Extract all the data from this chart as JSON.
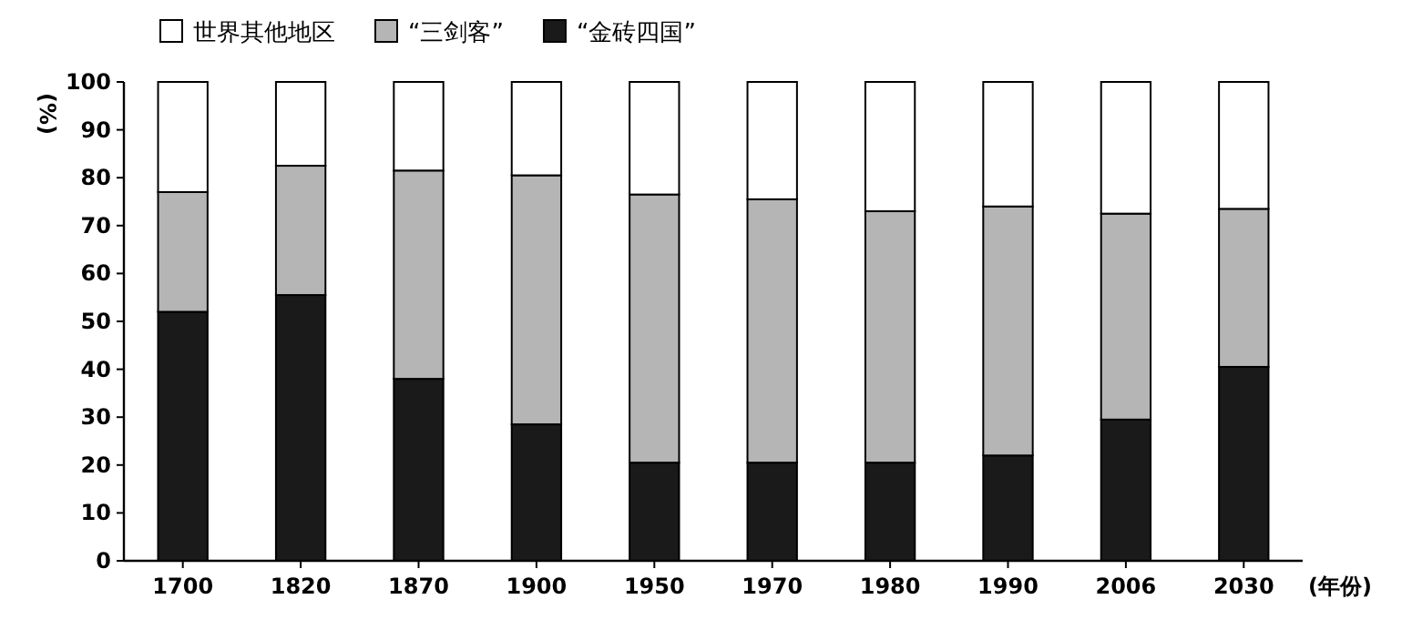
{
  "chart_data": {
    "type": "bar",
    "stacked": true,
    "ylabel": "(%)",
    "xlabel": "(年份)",
    "categories": [
      "1700",
      "1820",
      "1870",
      "1900",
      "1950",
      "1970",
      "1980",
      "1990",
      "2006",
      "2030"
    ],
    "series": [
      {
        "name": "“金砖四国”",
        "color": "#1a1a1a",
        "values": [
          52,
          55.5,
          38,
          28.5,
          20.5,
          20.5,
          20.5,
          22,
          29.5,
          40.5
        ]
      },
      {
        "name": "“三剑客”",
        "color": "#b5b5b5",
        "values": [
          25,
          27,
          43.5,
          52,
          56,
          55,
          52.5,
          52,
          43,
          33
        ]
      },
      {
        "name": "世界其他地区",
        "color": "#ffffff",
        "values": [
          23,
          17.5,
          18.5,
          19.5,
          23.5,
          24.5,
          27,
          26,
          27.5,
          26.5
        ]
      }
    ],
    "ylim": [
      0,
      100
    ],
    "yticks": [
      0,
      10,
      20,
      30,
      40,
      50,
      60,
      70,
      80,
      90,
      100
    ],
    "legend": "top",
    "grid": false
  }
}
